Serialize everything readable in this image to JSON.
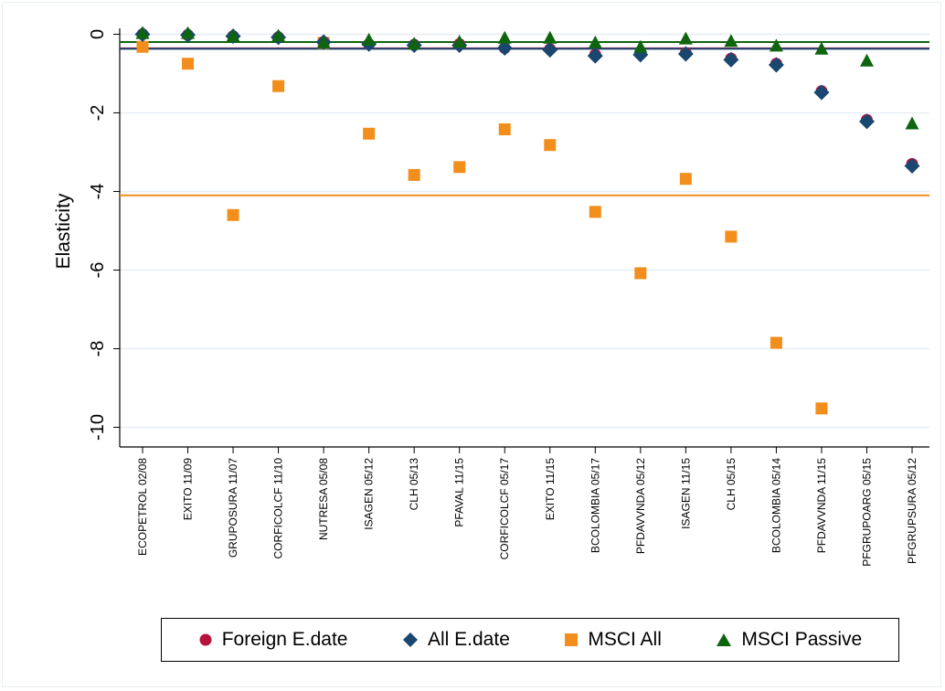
{
  "chart_data": {
    "type": "scatter",
    "ylabel": "Elasticity",
    "ylim": [
      -10.5,
      0.15
    ],
    "yticks": [
      0,
      -2,
      -4,
      -6,
      -8,
      -10
    ],
    "categories": [
      "ECOPETROL 02/08",
      "EXITO 11/09",
      "GRUPOSURA 11/07",
      "CORFICOLCF 11/10",
      "NUTRESA 05/08",
      "ISAGEN 05/12",
      "CLH 05/13",
      "PFAVAL 11/15",
      "CORFICOLCF 05/17",
      "EXITO 11/15",
      "BCOLOMBIA 05/17",
      "PFDAVVNDA 05/12",
      "ISAGEN 11/15",
      "CLH 05/15",
      "BCOLOMBIA 05/14",
      "PFDAVVNDA 11/15",
      "PFGRUPOARG 05/15",
      "PFGRUPSURA 05/12"
    ],
    "grid": true,
    "legend_position": "bottom",
    "series": [
      {
        "name": "Foreign E.date",
        "marker": "circle",
        "color": "#b5123e",
        "values": [
          0,
          -0.02,
          -0.05,
          -0.08,
          -0.2,
          -0.25,
          -0.27,
          -0.25,
          -0.35,
          -0.38,
          -0.52,
          -0.5,
          -0.48,
          -0.62,
          -0.75,
          -1.45,
          -2.18,
          -3.3
        ],
        "mean": -0.36
      },
      {
        "name": "All E.date",
        "marker": "diamond",
        "color": "#1a476f",
        "values": [
          0,
          -0.02,
          -0.05,
          -0.08,
          -0.2,
          -0.25,
          -0.28,
          -0.28,
          -0.35,
          -0.4,
          -0.55,
          -0.52,
          -0.5,
          -0.65,
          -0.78,
          -1.48,
          -2.22,
          -3.35
        ],
        "mean": -0.37
      },
      {
        "name": "MSCI All",
        "marker": "square",
        "color": "#f28e1c",
        "values": [
          -0.32,
          -0.75,
          -4.6,
          -1.32,
          -0.22,
          -2.53,
          -3.58,
          -3.38,
          -2.42,
          -2.82,
          -4.52,
          -6.08,
          -3.68,
          -5.15,
          -7.85,
          -9.52,
          null,
          null
        ],
        "mean": -4.1
      },
      {
        "name": "MSCI Passive",
        "marker": "triangle",
        "color": "#0e650e",
        "values": [
          0.02,
          0.02,
          -0.05,
          -0.05,
          -0.22,
          -0.15,
          -0.25,
          -0.2,
          -0.1,
          -0.1,
          -0.22,
          -0.33,
          -0.12,
          -0.18,
          -0.3,
          -0.38,
          -0.68,
          -2.28
        ],
        "mean": -0.2
      }
    ]
  },
  "legend": {
    "items": [
      {
        "label": "Foreign E.date",
        "marker": "circle",
        "color": "#b5123e"
      },
      {
        "label": "All E.date",
        "marker": "diamond",
        "color": "#1a476f"
      },
      {
        "label": "MSCI All",
        "marker": "square",
        "color": "#f28e1c"
      },
      {
        "label": "MSCI Passive",
        "marker": "triangle",
        "color": "#0e650e"
      }
    ]
  }
}
